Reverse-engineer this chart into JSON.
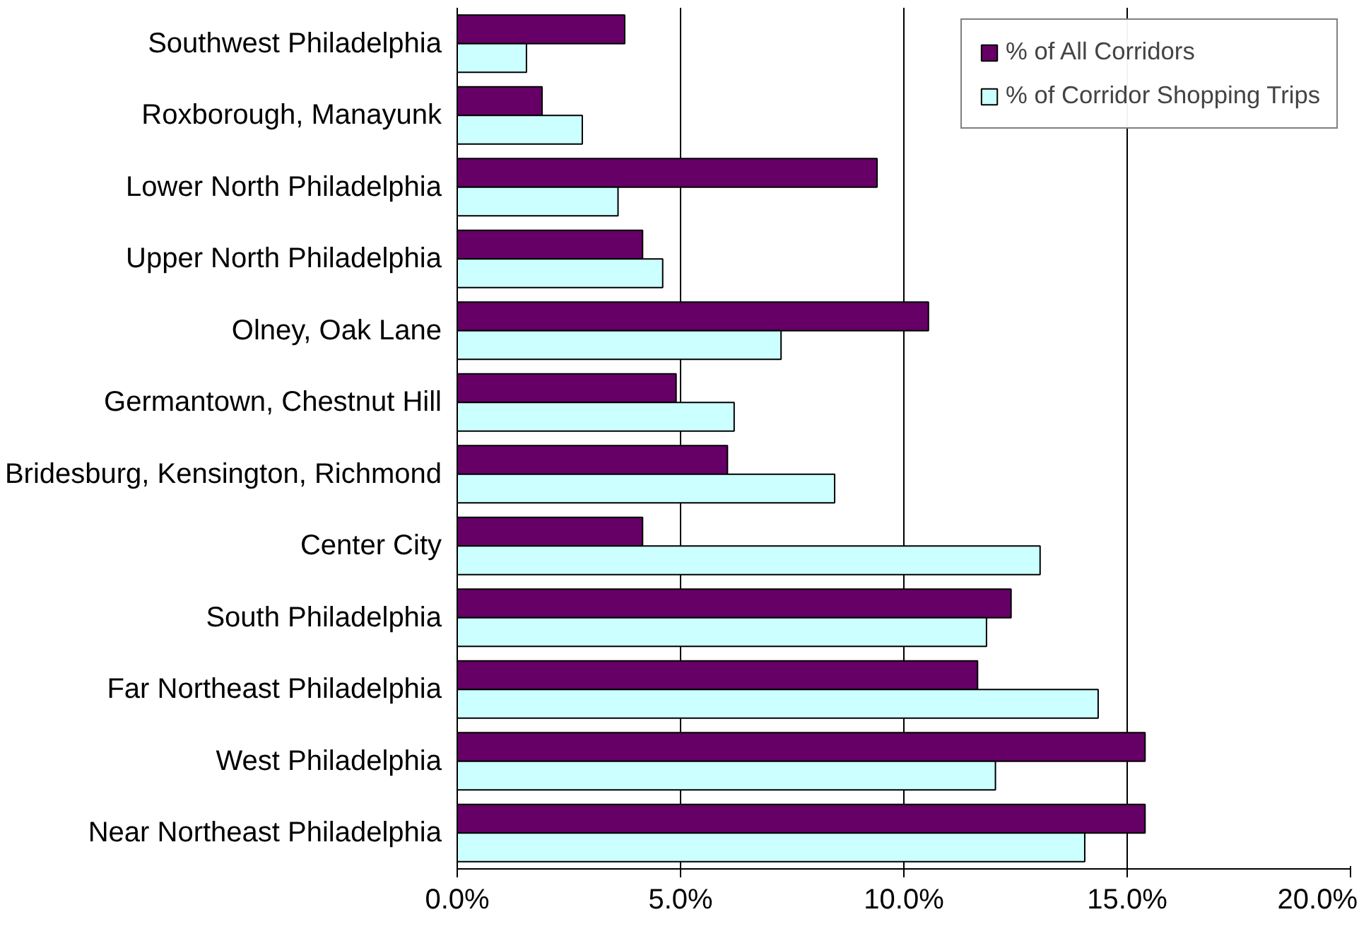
{
  "chart_data": {
    "type": "bar",
    "orientation": "horizontal",
    "categories": [
      "Southwest Philadelphia",
      "Roxborough, Manayunk",
      "Lower North Philadelphia",
      "Upper North Philadelphia",
      "Olney, Oak Lane",
      "Germantown, Chestnut Hill",
      "Bridesburg, Kensington, Richmond",
      "Center City",
      "South Philadelphia",
      "Far Northeast Philadelphia",
      "West Philadelphia",
      "Near Northeast Philadelphia"
    ],
    "series": [
      {
        "name": "% of All Corridors",
        "color": "#660066",
        "values": [
          3.75,
          1.9,
          9.4,
          4.15,
          10.55,
          4.9,
          6.05,
          4.15,
          12.4,
          11.65,
          15.4,
          15.4
        ]
      },
      {
        "name": "% of Corridor Shopping Trips",
        "color": "#ccffff",
        "values": [
          1.55,
          2.8,
          3.6,
          4.6,
          7.25,
          6.2,
          8.45,
          13.05,
          11.85,
          14.35,
          12.05,
          14.05
        ]
      }
    ],
    "xlim": [
      0,
      20
    ],
    "xticks": [
      {
        "value": 0,
        "label": "0.0%"
      },
      {
        "value": 5,
        "label": "5.0%"
      },
      {
        "value": 10,
        "label": "10.0%"
      },
      {
        "value": 15,
        "label": "15.0%"
      },
      {
        "value": 20,
        "label": "20.0%"
      }
    ],
    "grid": "x",
    "legend": "top right"
  }
}
